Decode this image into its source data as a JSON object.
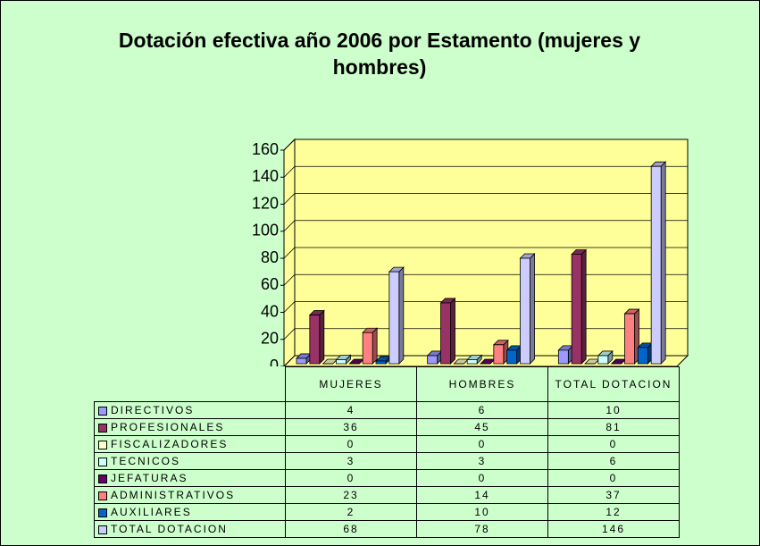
{
  "chart_data": {
    "type": "bar3d",
    "title": "Dotación efectiva año 2006 por Estamento (mujeres y hombres)",
    "categories": [
      "MUJERES",
      "HOMBRES",
      "TOTAL DOTACION"
    ],
    "series": [
      {
        "name": "DIRECTIVOS",
        "color": "#9999ff",
        "values": [
          4,
          6,
          10
        ]
      },
      {
        "name": "PROFESIONALES",
        "color": "#993366",
        "values": [
          36,
          45,
          81
        ]
      },
      {
        "name": "FISCALIZADORES",
        "color": "#ffffcc",
        "values": [
          0,
          0,
          0
        ]
      },
      {
        "name": "TECNICOS",
        "color": "#ccffff",
        "values": [
          3,
          3,
          6
        ]
      },
      {
        "name": "JEFATURAS",
        "color": "#660066",
        "values": [
          0,
          0,
          0
        ]
      },
      {
        "name": "ADMINISTRATIVOS",
        "color": "#ff8080",
        "values": [
          23,
          14,
          37
        ]
      },
      {
        "name": "AUXILIARES",
        "color": "#0066cc",
        "values": [
          2,
          10,
          12
        ]
      },
      {
        "name": "TOTAL DOTACION",
        "color": "#ccccff",
        "values": [
          68,
          78,
          146
        ]
      }
    ],
    "ylim": [
      0,
      160
    ],
    "yticks": [
      0,
      20,
      40,
      60,
      80,
      100,
      120,
      140,
      160
    ],
    "grid": true,
    "wall_color": "#ffff99"
  }
}
